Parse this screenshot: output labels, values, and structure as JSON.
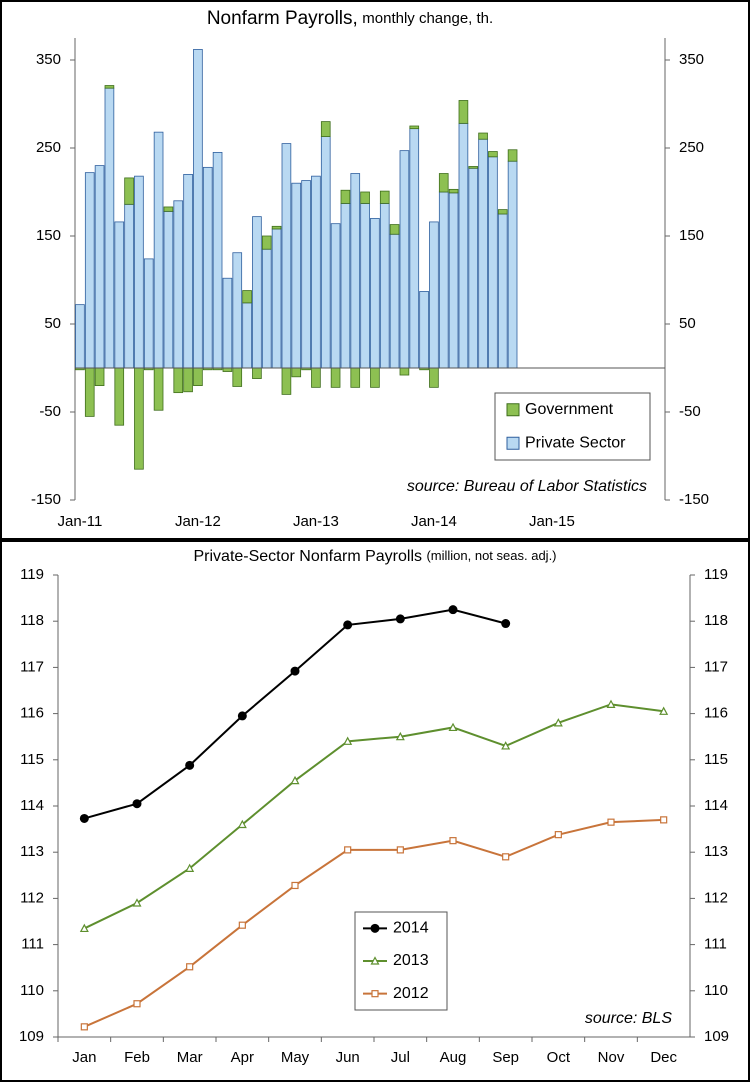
{
  "chart_data": [
    {
      "type": "bar",
      "stacked": true,
      "title": "Nonfarm Payrolls,",
      "subtitle": "monthly change, th.",
      "categories": [
        "Jan-11",
        null,
        null,
        null,
        null,
        null,
        null,
        null,
        null,
        null,
        null,
        null,
        "Jan-12",
        null,
        null,
        null,
        null,
        null,
        null,
        null,
        null,
        null,
        null,
        null,
        "Jan-13",
        null,
        null,
        null,
        null,
        null,
        null,
        null,
        null,
        null,
        null,
        null,
        "Jan-14",
        null,
        null,
        null,
        null,
        null,
        null,
        null,
        null,
        null,
        null,
        null,
        "Jan-15",
        null,
        null,
        null,
        null,
        null,
        null,
        null,
        null,
        null,
        null,
        null
      ],
      "series": [
        {
          "name": "Private Sector",
          "color": "#b9d9f2",
          "edge": "#2f5f9e",
          "values": [
            72,
            222,
            230,
            318,
            166,
            186,
            218,
            124,
            268,
            178,
            190,
            220,
            362,
            228,
            245,
            102,
            131,
            74,
            172,
            135,
            158,
            255,
            210,
            213,
            218,
            263,
            164,
            187,
            221,
            187,
            170,
            187,
            152,
            247,
            272,
            87,
            166,
            200,
            199,
            278,
            227,
            260,
            240,
            175,
            235,
            null,
            null,
            null,
            null,
            null,
            null,
            null,
            null,
            null,
            null,
            null,
            null,
            null,
            null,
            null
          ]
        },
        {
          "name": "Government",
          "color": "#8dc052",
          "edge": "#3f6e1c",
          "values": [
            -2,
            -55,
            -20,
            3,
            -65,
            30,
            -115,
            -2,
            -48,
            5,
            -28,
            -27,
            -20,
            -2,
            -2,
            -4,
            -21,
            14,
            -12,
            15,
            3,
            -30,
            -10,
            -2,
            -22,
            17,
            -22,
            15,
            -22,
            13,
            -22,
            14,
            11,
            -8,
            3,
            -2,
            -22,
            21,
            4,
            26,
            2,
            7,
            6,
            5,
            13,
            null,
            null,
            null,
            null,
            null,
            null,
            null,
            null,
            null,
            null,
            null,
            null,
            null,
            null,
            null
          ]
        }
      ],
      "ylim": [
        -150,
        375
      ],
      "yticks": [
        -150,
        -50,
        50,
        150,
        250,
        350
      ],
      "y2lim": [
        -150,
        375
      ],
      "y2ticks": [
        -150,
        -50,
        50,
        150,
        250,
        350
      ],
      "legend": "lower right",
      "annotation": "source: Bureau of Labor Statistics"
    },
    {
      "type": "line",
      "title": "Private-Sector Nonfarm Payrolls",
      "subtitle": "(million, not seas. adj.)",
      "categories": [
        "Jan",
        "Feb",
        "Mar",
        "Apr",
        "May",
        "Jun",
        "Jul",
        "Aug",
        "Sep",
        "Oct",
        "Nov",
        "Dec"
      ],
      "series": [
        {
          "name": "2014",
          "color": "#000000",
          "marker": "circle",
          "values": [
            113.73,
            114.05,
            114.88,
            115.95,
            116.92,
            117.92,
            118.05,
            118.25,
            117.95,
            null,
            null,
            null
          ]
        },
        {
          "name": "2013",
          "color": "#5e8f2e",
          "marker": "triangle",
          "values": [
            111.35,
            111.9,
            112.65,
            113.6,
            114.55,
            115.4,
            115.5,
            115.7,
            115.3,
            115.8,
            116.2,
            116.05
          ]
        },
        {
          "name": "2012",
          "color": "#c8743a",
          "marker": "square",
          "values": [
            109.22,
            109.72,
            110.52,
            111.42,
            112.28,
            113.05,
            113.05,
            113.25,
            112.9,
            113.38,
            113.65,
            113.7
          ]
        }
      ],
      "ylim": [
        109,
        119
      ],
      "yticks": [
        109,
        110,
        111,
        112,
        113,
        114,
        115,
        116,
        117,
        118,
        119
      ],
      "y2lim": [
        109,
        119
      ],
      "y2ticks": [
        109,
        110,
        111,
        112,
        113,
        114,
        115,
        116,
        117,
        118,
        119
      ],
      "legend": "lower center",
      "annotation": "source: BLS"
    }
  ]
}
